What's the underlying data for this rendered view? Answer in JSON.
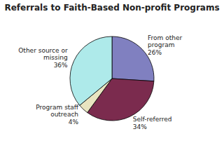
{
  "chart_data": {
    "type": "pie",
    "title": "Referrals to Faith-Based Non-profit Programs",
    "categories": [
      "From other\nprogram\n26%",
      "Self-referred\n34%",
      "Program staff\noutreach\n4%",
      "Other source or\nmissing\n36%"
    ],
    "values": [
      26,
      34,
      4,
      36
    ],
    "colors": [
      "#8080c0",
      "#7b2b4e",
      "#e8e4c0",
      "#aeeaea"
    ]
  }
}
